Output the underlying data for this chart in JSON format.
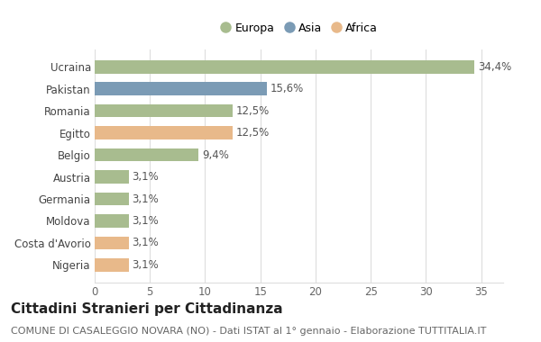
{
  "categories": [
    "Ucraina",
    "Pakistan",
    "Romania",
    "Egitto",
    "Belgio",
    "Austria",
    "Germania",
    "Moldova",
    "Costa d'Avorio",
    "Nigeria"
  ],
  "values": [
    34.4,
    15.6,
    12.5,
    12.5,
    9.4,
    3.1,
    3.1,
    3.1,
    3.1,
    3.1
  ],
  "labels": [
    "34,4%",
    "15,6%",
    "12,5%",
    "12,5%",
    "9,4%",
    "3,1%",
    "3,1%",
    "3,1%",
    "3,1%",
    "3,1%"
  ],
  "colors": [
    "#a8bc8f",
    "#7b9bb5",
    "#a8bc8f",
    "#e8b98a",
    "#a8bc8f",
    "#a8bc8f",
    "#a8bc8f",
    "#a8bc8f",
    "#e8b98a",
    "#e8b98a"
  ],
  "legend_labels": [
    "Europa",
    "Asia",
    "Africa"
  ],
  "legend_colors": [
    "#a8bc8f",
    "#7b9bb5",
    "#e8b98a"
  ],
  "title": "Cittadini Stranieri per Cittadinanza",
  "subtitle": "COMUNE DI CASALEGGIO NOVARA (NO) - Dati ISTAT al 1° gennaio - Elaborazione TUTTITALIA.IT",
  "xlim": [
    0,
    37
  ],
  "xticks": [
    0,
    5,
    10,
    15,
    20,
    25,
    30,
    35
  ],
  "bg_color": "#ffffff",
  "plot_bg_color": "#ffffff",
  "grid_color": "#dddddd",
  "bar_height": 0.6,
  "label_fontsize": 8.5,
  "title_fontsize": 11,
  "subtitle_fontsize": 8
}
